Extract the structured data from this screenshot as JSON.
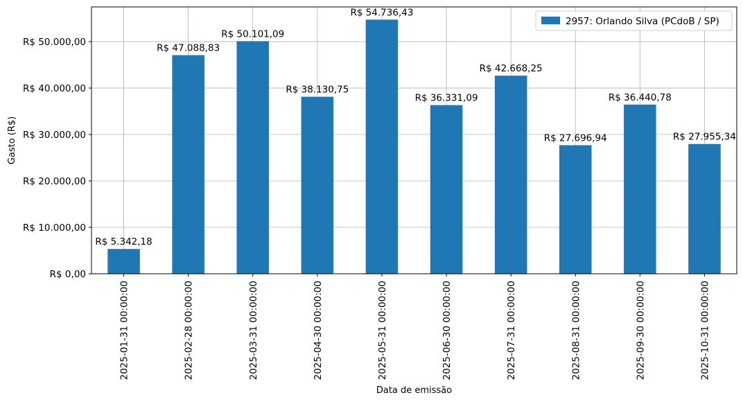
{
  "chart_data": {
    "type": "bar",
    "categories": [
      "2025-01-31 00:00:00",
      "2025-02-28 00:00:00",
      "2025-03-31 00:00:00",
      "2025-04-30 00:00:00",
      "2025-05-31 00:00:00",
      "2025-06-30 00:00:00",
      "2025-07-31 00:00:00",
      "2025-08-31 00:00:00",
      "2025-09-30 00:00:00",
      "2025-10-31 00:00:00"
    ],
    "series": [
      {
        "name": "2957: Orlando Silva (PCdoB / SP)",
        "color": "#1f77b4",
        "values": [
          5342.18,
          47088.83,
          50101.09,
          38130.75,
          54736.43,
          36331.09,
          42668.25,
          27696.94,
          36440.78,
          27955.34
        ],
        "labels": [
          "R$ 5.342,18",
          "R$ 47.088,83",
          "R$ 50.101,09",
          "R$ 38.130,75",
          "R$ 54.736,43",
          "R$ 36.331,09",
          "R$ 42.668,25",
          "R$ 27.696,94",
          "R$ 36.440,78",
          "R$ 27.955,34"
        ]
      }
    ],
    "title": "",
    "xlabel": "Data de emissão",
    "ylabel": "Gasto (R$)",
    "ylim": [
      0,
      57473.25
    ],
    "yticks": [
      0,
      10000,
      20000,
      30000,
      40000,
      50000
    ],
    "ytick_labels": [
      "R$ 0,00",
      "R$ 10.000,00",
      "R$ 20.000,00",
      "R$ 30.000,00",
      "R$ 40.000,00",
      "R$ 50.000,00"
    ],
    "grid": true,
    "legend_position": "top-right"
  }
}
